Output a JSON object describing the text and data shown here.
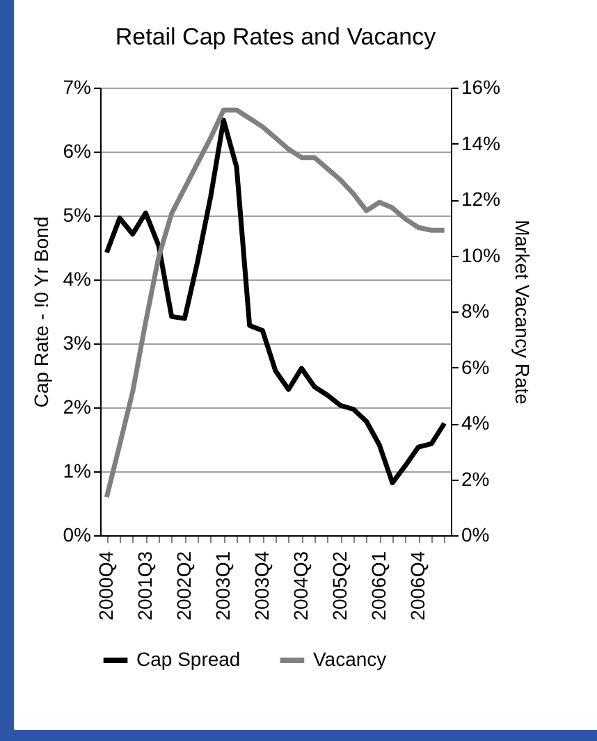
{
  "chart_data": {
    "type": "line",
    "title": "Retail Cap Rates and Vacancy",
    "ylabel": "Cap Rate - !0 Yr Bond",
    "y2label": "Market Vacancy Rate",
    "categories": [
      "2000Q4",
      null,
      null,
      "2001Q3",
      null,
      null,
      "2002Q2",
      null,
      null,
      "2003Q1",
      null,
      null,
      "2003Q4",
      null,
      null,
      "2004Q3",
      null,
      null,
      "2005Q2",
      null,
      null,
      "2006Q1",
      null,
      null,
      "2006Q4",
      null,
      null
    ],
    "series": [
      {
        "name": "Cap Spread",
        "color": "#000000",
        "values": [
          4.42,
          4.96,
          4.71,
          5.04,
          4.53,
          3.42,
          3.39,
          4.28,
          5.29,
          6.49,
          5.76,
          3.28,
          3.2,
          2.57,
          2.28,
          2.61,
          2.32,
          2.19,
          2.03,
          1.97,
          1.78,
          1.41,
          0.82,
          1.09,
          1.38,
          1.43,
          1.75
        ]
      },
      {
        "name": "Vacancy",
        "color": "#808080",
        "axis": "y2",
        "values": [
          1.36,
          3.23,
          5.13,
          7.62,
          9.94,
          11.5,
          12.4,
          13.3,
          14.2,
          15.2,
          15.2,
          14.9,
          14.6,
          14.2,
          13.8,
          13.5,
          13.5,
          13.1,
          12.7,
          12.2,
          11.6,
          11.9,
          11.7,
          11.3,
          11.0,
          10.9,
          10.9
        ]
      }
    ],
    "ylim": [
      0,
      7
    ],
    "yticks": [
      {
        "value": 0,
        "label": "0%"
      },
      {
        "value": 1,
        "label": "1%"
      },
      {
        "value": 2,
        "label": "2%"
      },
      {
        "value": 3,
        "label": "3%"
      },
      {
        "value": 4,
        "label": "4%"
      },
      {
        "value": 5,
        "label": "5%"
      },
      {
        "value": 6,
        "label": "6%"
      },
      {
        "value": 7,
        "label": "7%"
      }
    ],
    "y2lim": [
      0,
      16
    ],
    "y2ticks": [
      {
        "value": 0,
        "label": "0%"
      },
      {
        "value": 2,
        "label": "2%"
      },
      {
        "value": 4,
        "label": "4%"
      },
      {
        "value": 6,
        "label": "6%"
      },
      {
        "value": 8,
        "label": "8%"
      },
      {
        "value": 10,
        "label": "10%"
      },
      {
        "value": 12,
        "label": "12%"
      },
      {
        "value": 14,
        "label": "14%"
      },
      {
        "value": 16,
        "label": "16%"
      }
    ],
    "grid": "y",
    "legend": "bottom",
    "marker": "none",
    "line_style": "solid"
  }
}
